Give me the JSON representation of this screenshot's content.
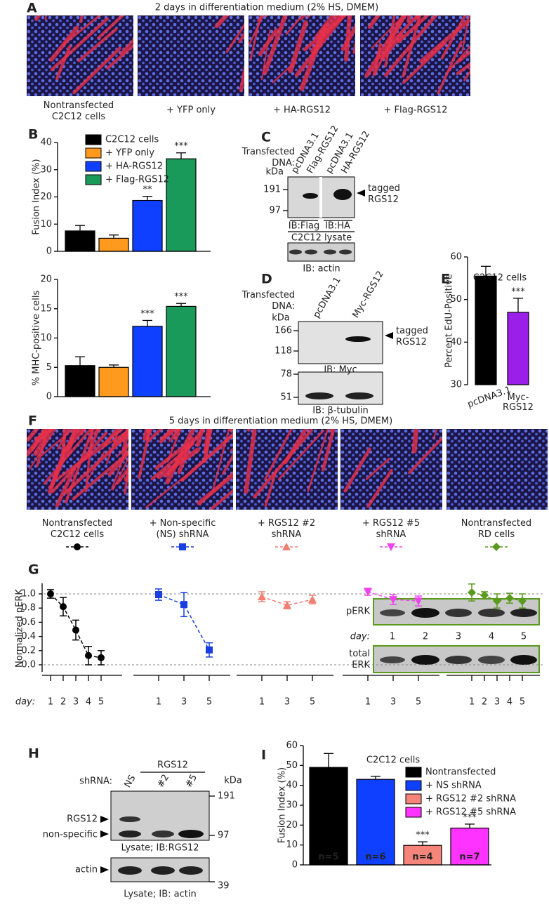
{
  "panels": {
    "A": {
      "label": "A",
      "title": "2 days in differentiation medium (2% HS, DMEM)",
      "captions": [
        "Nontransfected\nC2C12 cells",
        "+ YFP only",
        "+ HA-RGS12",
        "+ Flag-RGS12"
      ]
    },
    "B": {
      "label": "B"
    },
    "C": {
      "label": "C",
      "transfected": "Transfected\nDNA:",
      "lanes": [
        "pcDNA3.1",
        "Flag-RGS12",
        "pcDNA3.1",
        "HA-RGS12"
      ],
      "kda": "kDa",
      "markers": [
        191,
        97
      ],
      "arrow_label": "tagged\nRGS12",
      "ib_labels": [
        "IB:Flag",
        "IB:HA"
      ],
      "lysate": "C2C12 lysate",
      "actin": "IB: actin"
    },
    "D": {
      "label": "D",
      "transfected": "Transfected\nDNA:",
      "lanes": [
        "pcDNA3.1",
        "Myc-RGS12"
      ],
      "kda": "kDa",
      "markers_top": [
        166,
        118
      ],
      "arrow_label": "tagged\nRGS12",
      "ib_top": "IB: Myc",
      "markers_bottom": [
        78,
        51
      ],
      "ib_bottom": "IB: β-tubulin"
    },
    "E": {
      "label": "E"
    },
    "F": {
      "label": "F",
      "title": "5 days in differentiation medium (2% HS, DMEM)"
    },
    "G": {
      "label": "G",
      "inset": {
        "pERK": "pERK",
        "day": "day:",
        "days": [
          "1",
          "2",
          "3",
          "4",
          "5"
        ],
        "total": "total\nERK"
      }
    },
    "H": {
      "label": "H",
      "group": "RGS12",
      "shrna": "shRNA:",
      "lanes": [
        "NS",
        "#2",
        "#5"
      ],
      "kda": "kDa",
      "markers": [
        191,
        97,
        39
      ],
      "bands": [
        "RGS12",
        "non-specific"
      ],
      "lysate1": "Lysate; IB:RGS12",
      "actin": "actin",
      "lysate2": "Lysate; IB: actin"
    },
    "I": {
      "label": "I"
    }
  },
  "chart_data": [
    {
      "type": "bar",
      "ylabel": "Fusion Index (%)",
      "ylim": [
        0,
        40
      ],
      "yticks": [
        0,
        10,
        20,
        30,
        40
      ],
      "series": [
        {
          "name": "C2C12 cells",
          "color": "#000000",
          "values": [
            7.5
          ],
          "errors": [
            2.0
          ]
        },
        {
          "name": "+ YFP only",
          "color": "#ff9a1e",
          "values": [
            4.8
          ],
          "errors": [
            1.2
          ]
        },
        {
          "name": "+ HA-RGS12",
          "color": "#1040ff",
          "values": [
            18.7
          ],
          "errors": [
            1.5
          ],
          "annotation": "**"
        },
        {
          "name": "+ Flag-RGS12",
          "color": "#1a9a5a",
          "values": [
            34.0
          ],
          "errors": [
            2.2
          ],
          "annotation": "***"
        }
      ]
    },
    {
      "type": "bar",
      "ylabel": "% MHC-positive cells",
      "ylim": [
        0,
        20
      ],
      "yticks": [
        0,
        5,
        10,
        15,
        20
      ],
      "values": [
        5.3,
        5.0,
        12.0,
        15.4
      ],
      "errors": [
        1.5,
        0.4,
        1.0,
        0.5
      ],
      "colors": [
        "#000000",
        "#ff9a1e",
        "#1040ff",
        "#1a9a5a"
      ],
      "annotations": [
        null,
        null,
        "***",
        "***"
      ]
    },
    {
      "type": "bar",
      "title": "C2C12 cells",
      "ylabel": "Percent EdU-Positive",
      "ylim": [
        30,
        60
      ],
      "yticks": [
        30,
        40,
        50,
        60
      ],
      "categories": [
        "pcDNA3.1",
        "Myc-\nRGS12"
      ],
      "values": [
        55.5,
        47.0
      ],
      "errors": [
        2.3,
        3.3
      ],
      "colors": [
        "#000000",
        "#9b1fe8"
      ],
      "annotations": [
        null,
        "***"
      ]
    },
    {
      "type": "line",
      "ylabel": "Normalized pERK",
      "xlabel": "day:",
      "ylim": [
        -0.1,
        1.15
      ],
      "yticks": [
        {
          "value": 0,
          "label": "0.0"
        },
        0.2,
        0.4,
        0.6,
        0.8,
        {
          "value": 1,
          "label": "1.0"
        }
      ],
      "reference_lines": [
        0,
        1
      ],
      "series": [
        {
          "name": "Nontransfected\nC2C12 cells",
          "color": "#000000",
          "marker": "circle",
          "x": [
            1,
            2,
            3,
            4,
            5
          ],
          "values": [
            1.0,
            0.82,
            0.49,
            0.13,
            0.1
          ],
          "errors": [
            0.06,
            0.13,
            0.14,
            0.13,
            0.1
          ]
        },
        {
          "name": "+ Non-specific\n(NS) shRNA",
          "color": "#1a3fe0",
          "marker": "square",
          "x": [
            1,
            3,
            5
          ],
          "values": [
            0.99,
            0.85,
            0.21
          ],
          "errors": [
            0.08,
            0.17,
            0.1
          ]
        },
        {
          "name": "+ RGS12 #2\nshRNA",
          "color": "#f07f72",
          "marker": "triangle",
          "x": [
            1,
            3,
            5
          ],
          "values": [
            0.96,
            0.84,
            0.92
          ],
          "errors": [
            0.07,
            0.05,
            0.06
          ]
        },
        {
          "name": "+ RGS12 #5\nshRNA",
          "color": "#ee44ee",
          "marker": "triangle-down",
          "x": [
            1,
            3,
            5
          ],
          "values": [
            1.03,
            0.92,
            0.9
          ],
          "errors": [
            0.05,
            0.07,
            0.07
          ]
        },
        {
          "name": "Nontransfected\nRD cells",
          "color": "#5a9a1e",
          "marker": "diamond",
          "x": [
            1,
            2,
            3,
            4,
            5
          ],
          "values": [
            1.02,
            0.98,
            0.9,
            0.94,
            0.9
          ],
          "errors": [
            0.12,
            0.05,
            0.1,
            0.07,
            0.1
          ]
        }
      ]
    },
    {
      "type": "bar",
      "title": "C2C12 cells",
      "ylabel": "Fusion Index (%)",
      "ylim": [
        0,
        60
      ],
      "yticks": [
        0,
        10,
        20,
        30,
        40,
        50,
        60
      ],
      "series": [
        {
          "name": "Nontransfected",
          "color": "#000000",
          "values": [
            49.0
          ],
          "errors": [
            7.0
          ],
          "bar_label": "n=5"
        },
        {
          "name": "+ NS shRNA",
          "color": "#1040ff",
          "values": [
            43.0
          ],
          "errors": [
            1.5
          ],
          "bar_label": "n=6"
        },
        {
          "name": "+ RGS12 #2 shRNA",
          "color": "#f5857a",
          "values": [
            9.8
          ],
          "errors": [
            1.8
          ],
          "bar_label": "n=4",
          "annotation": "***"
        },
        {
          "name": "+ RGS12 #5 shRNA",
          "color": "#ff33ff",
          "values": [
            18.5
          ],
          "errors": [
            2.0
          ],
          "bar_label": "n=7",
          "annotation": "***"
        }
      ]
    }
  ]
}
